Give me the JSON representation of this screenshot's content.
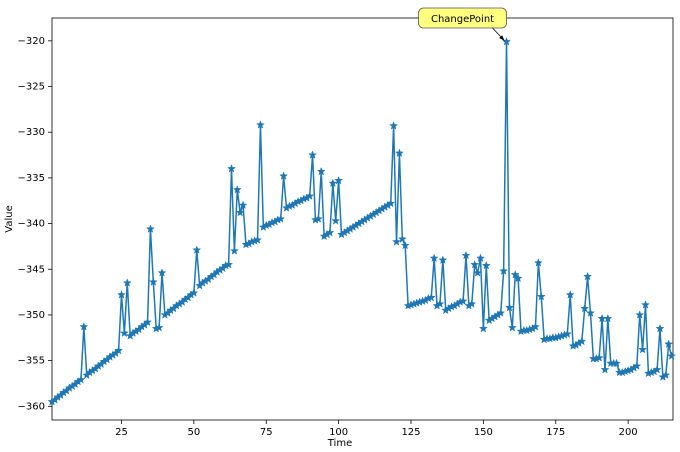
{
  "chart_data": {
    "type": "line",
    "x_label": "Time",
    "y_label": "Value",
    "color": "#1f77b4",
    "marker": "star",
    "annotation": {
      "text": "ChangePoint",
      "x": 158,
      "y": -320.1
    },
    "xlim": [
      1,
      215.5
    ],
    "ylim": [
      -361.5,
      -317.5
    ],
    "xticks": [
      25,
      50,
      75,
      100,
      125,
      150,
      175,
      200
    ],
    "yticks": [
      {
        "value": -320,
        "label": "−320"
      },
      {
        "value": -325,
        "label": "−325"
      },
      {
        "value": -330,
        "label": "−330"
      },
      {
        "value": -335,
        "label": "−335"
      },
      {
        "value": -340,
        "label": "−340"
      },
      {
        "value": -345,
        "label": "−345"
      },
      {
        "value": -350,
        "label": "−350"
      },
      {
        "value": -355,
        "label": "−355"
      },
      {
        "value": -360,
        "label": "−360"
      }
    ],
    "x": [
      1,
      2,
      3,
      4,
      5,
      6,
      7,
      8,
      9,
      10,
      11,
      12,
      13,
      14,
      15,
      16,
      17,
      18,
      19,
      20,
      21,
      22,
      23,
      24,
      25,
      26,
      27,
      28,
      29,
      30,
      31,
      32,
      33,
      34,
      35,
      36,
      37,
      38,
      39,
      40,
      41,
      42,
      43,
      44,
      45,
      46,
      47,
      48,
      49,
      50,
      51,
      52,
      53,
      54,
      55,
      56,
      57,
      58,
      59,
      60,
      61,
      62,
      63,
      64,
      65,
      66,
      67,
      68,
      69,
      70,
      71,
      72,
      73,
      74,
      75,
      76,
      77,
      78,
      79,
      80,
      81,
      82,
      83,
      84,
      85,
      86,
      87,
      88,
      89,
      90,
      91,
      92,
      93,
      94,
      95,
      96,
      97,
      98,
      99,
      100,
      101,
      102,
      103,
      104,
      105,
      106,
      107,
      108,
      109,
      110,
      111,
      112,
      113,
      114,
      115,
      116,
      117,
      118,
      119,
      120,
      121,
      122,
      123,
      124,
      125,
      126,
      127,
      128,
      129,
      130,
      131,
      132,
      133,
      134,
      135,
      136,
      137,
      138,
      139,
      140,
      141,
      142,
      143,
      144,
      145,
      146,
      147,
      148,
      149,
      150,
      151,
      152,
      153,
      154,
      155,
      156,
      157,
      158,
      159,
      160,
      161,
      162,
      163,
      164,
      165,
      166,
      167,
      168,
      169,
      170,
      171,
      172,
      173,
      174,
      175,
      176,
      177,
      178,
      179,
      180,
      181,
      182,
      183,
      184,
      185,
      186,
      187,
      188,
      189,
      190,
      191,
      192,
      193,
      194,
      195,
      196,
      197,
      198,
      199,
      200,
      201,
      202,
      203,
      204,
      205,
      206,
      207,
      208,
      209,
      210,
      211,
      212,
      213,
      214,
      215
    ],
    "values": [
      -359.5,
      -359.3,
      -359.0,
      -358.8,
      -358.5,
      -358.3,
      -358.0,
      -357.8,
      -357.6,
      -357.3,
      -357.1,
      -351.3,
      -356.6,
      -356.3,
      -356.1,
      -355.9,
      -355.6,
      -355.4,
      -355.1,
      -354.9,
      -354.6,
      -354.4,
      -354.2,
      -353.9,
      -347.8,
      -352.0,
      -346.5,
      -352.3,
      -352.0,
      -351.8,
      -351.6,
      -351.3,
      -351.1,
      -350.8,
      -340.6,
      -346.4,
      -351.5,
      -351.4,
      -345.4,
      -350.0,
      -349.8,
      -349.5,
      -349.3,
      -349.0,
      -348.8,
      -348.6,
      -348.3,
      -348.1,
      -347.8,
      -347.6,
      -342.9,
      -346.8,
      -346.5,
      -346.3,
      -346.1,
      -345.8,
      -345.6,
      -345.3,
      -345.1,
      -344.9,
      -344.6,
      -344.5,
      -334.0,
      -343.0,
      -336.3,
      -338.8,
      -338.0,
      -342.3,
      -342.2,
      -342.0,
      -341.9,
      -341.8,
      -329.2,
      -340.4,
      -340.2,
      -340.1,
      -339.9,
      -339.8,
      -339.6,
      -339.5,
      -334.8,
      -338.3,
      -338.1,
      -338.0,
      -337.8,
      -337.6,
      -337.5,
      -337.3,
      -337.2,
      -337.0,
      -332.5,
      -339.6,
      -339.5,
      -334.3,
      -341.4,
      -341.2,
      -341.0,
      -335.6,
      -339.7,
      -335.3,
      -341.2,
      -341.0,
      -340.8,
      -340.6,
      -340.4,
      -340.2,
      -340.0,
      -339.8,
      -339.6,
      -339.4,
      -339.2,
      -339.0,
      -338.8,
      -338.6,
      -338.4,
      -338.2,
      -338.0,
      -337.8,
      -329.3,
      -342.0,
      -332.3,
      -341.7,
      -342.4,
      -349.0,
      -348.9,
      -348.8,
      -348.7,
      -348.6,
      -348.5,
      -348.4,
      -348.2,
      -348.1,
      -343.8,
      -349.0,
      -348.8,
      -344.0,
      -349.5,
      -349.3,
      -349.1,
      -349.0,
      -348.8,
      -348.6,
      -348.5,
      -343.5,
      -349.0,
      -348.8,
      -344.5,
      -345.4,
      -343.8,
      -351.5,
      -344.6,
      -350.6,
      -350.4,
      -350.2,
      -350.0,
      -349.8,
      -345.2,
      -320.1,
      -349.2,
      -351.4,
      -345.6,
      -346.0,
      -351.8,
      -351.7,
      -351.7,
      -351.6,
      -351.5,
      -351.3,
      -344.3,
      -348.0,
      -352.7,
      -352.6,
      -352.6,
      -352.5,
      -352.5,
      -352.4,
      -352.3,
      -352.2,
      -352.1,
      -347.8,
      -353.4,
      -353.3,
      -353.1,
      -352.9,
      -349.3,
      -345.8,
      -349.8,
      -354.8,
      -354.8,
      -354.7,
      -350.4,
      -356.0,
      -350.4,
      -355.3,
      -355.3,
      -355.3,
      -356.3,
      -356.3,
      -356.2,
      -356.1,
      -356.0,
      -355.8,
      -355.6,
      -350.0,
      -353.8,
      -348.9,
      -356.4,
      -356.3,
      -356.2,
      -356.0,
      -351.5,
      -356.8,
      -356.6,
      -353.2,
      -354.5
    ]
  }
}
